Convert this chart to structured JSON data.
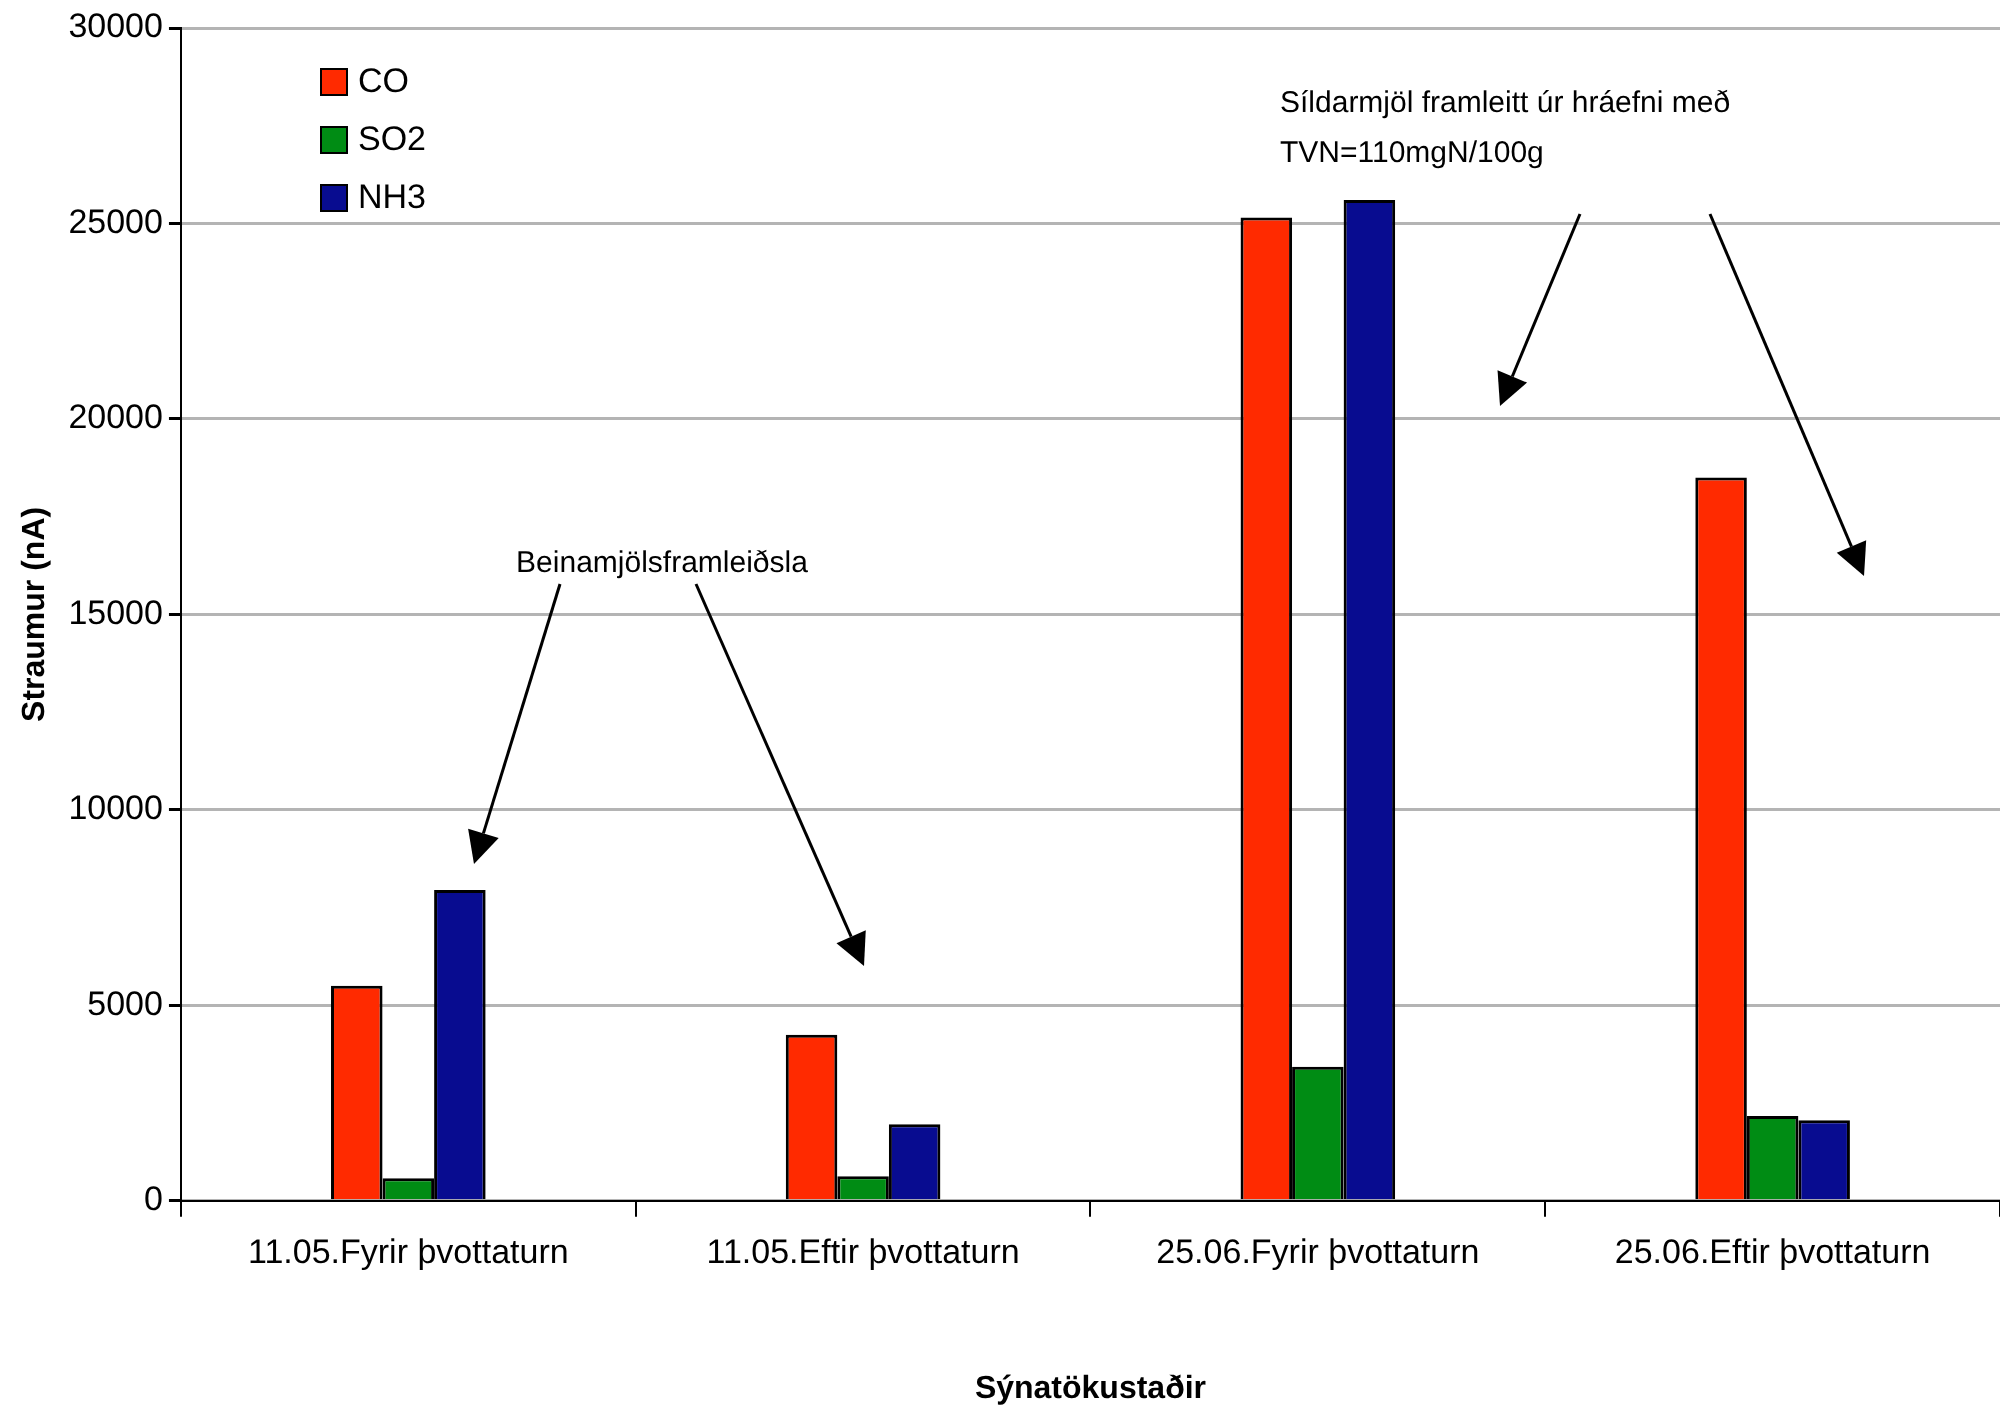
{
  "chart_data": {
    "type": "bar",
    "xlabel": "Sýnatökustaðir",
    "ylabel": "Straumur (nA)",
    "categories": [
      "11.05.Fyrir þvottaturn",
      "11.05.Eftir þvottaturn",
      "25.06.Fyrir þvottaturn",
      "25.06.Eftir þvottaturn"
    ],
    "series": [
      {
        "name": "CO",
        "color": "#ff2a00",
        "values": [
          5500,
          4250,
          25150,
          18500
        ]
      },
      {
        "name": "SO2",
        "color": "#008c14",
        "values": [
          580,
          630,
          3430,
          2170
        ]
      },
      {
        "name": "NH3",
        "color": "#080c90",
        "values": [
          7950,
          1960,
          25600,
          2060
        ]
      }
    ],
    "ylim": [
      0,
      30000
    ],
    "yticks": [
      0,
      5000,
      10000,
      15000,
      20000,
      25000,
      30000
    ],
    "grid": "y",
    "legend": "top left",
    "annotations": [
      "Beinamjölsframleiðsla",
      "Síldarmjöl framleitt úr hráefni með TVN=110mgN/100g"
    ]
  }
}
